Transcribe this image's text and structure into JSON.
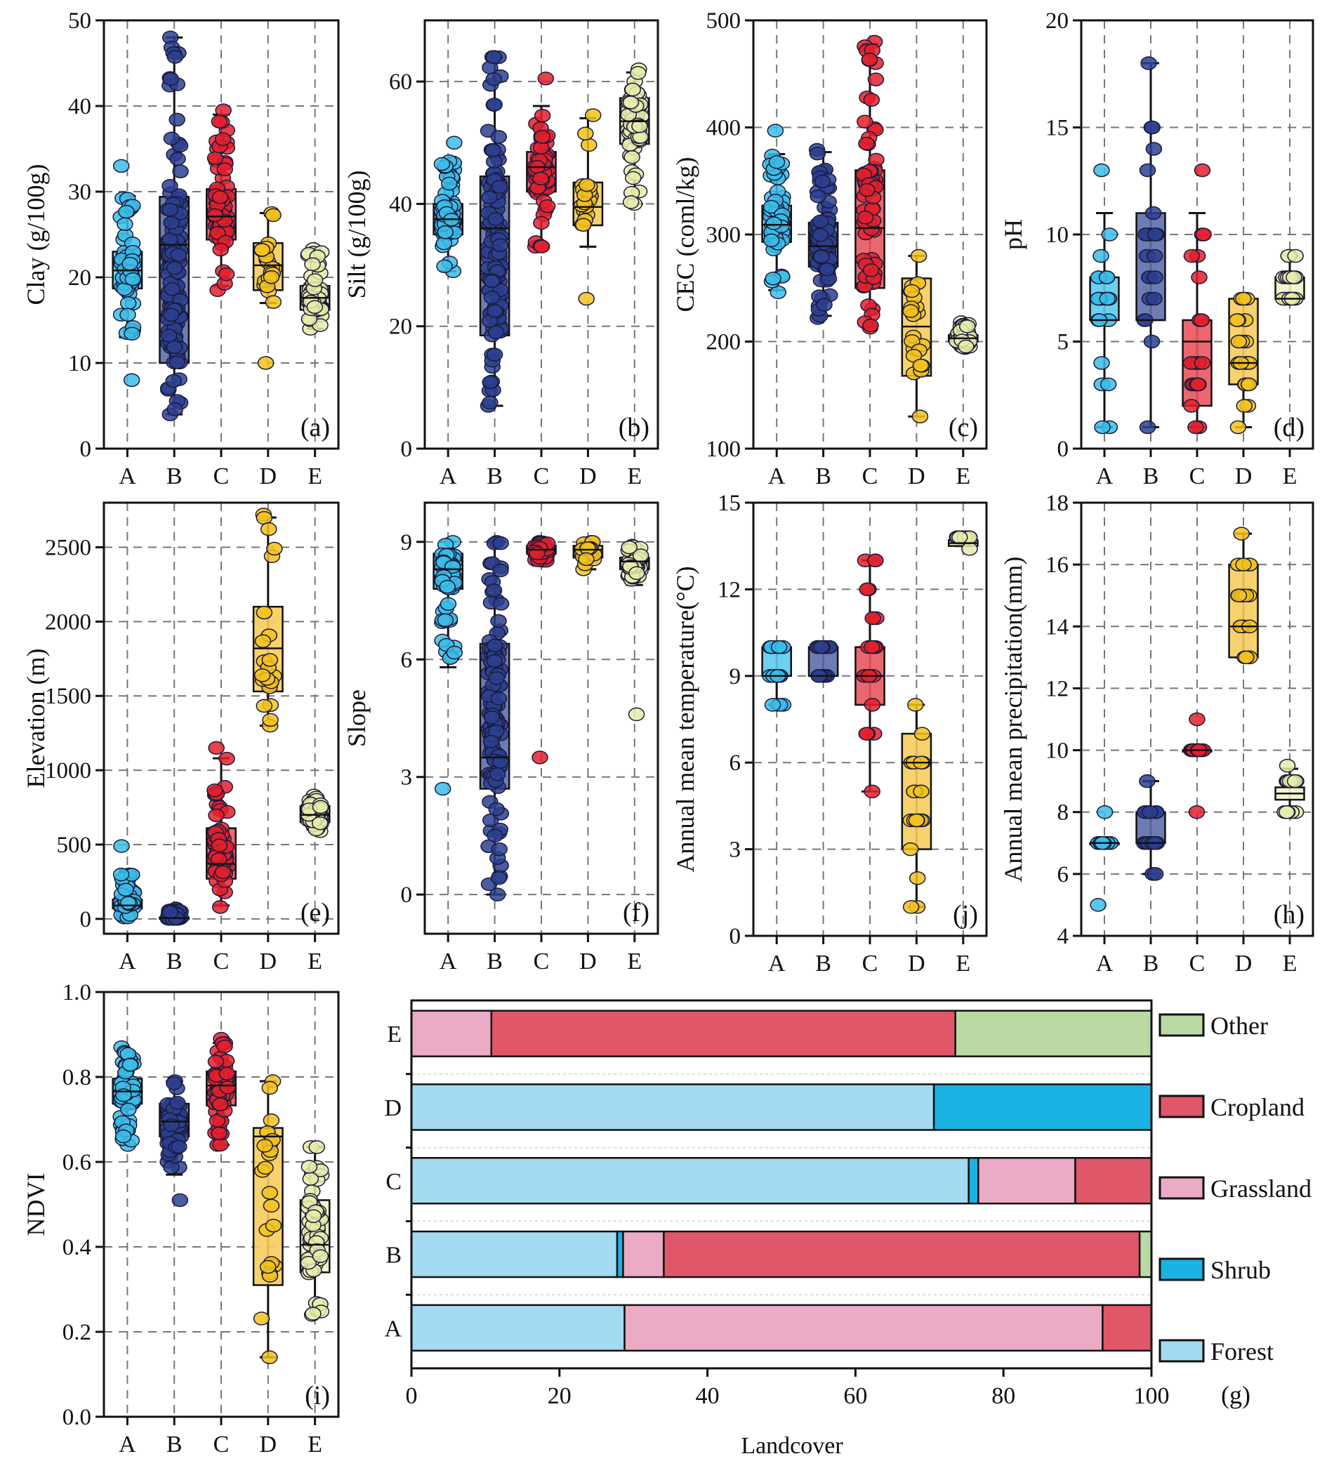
{
  "figure": {
    "categories": [
      "A",
      "B",
      "C",
      "D",
      "E"
    ],
    "group_colors": {
      "A": "#3bbde8",
      "B": "#2c3f8f",
      "C": "#e3202b",
      "D": "#f3c21c",
      "E": "#e8ecaa"
    },
    "box_fill_colors": {
      "A": "#5ccbef",
      "B": "#5d6eaa",
      "C": "#e9565f",
      "D": "#f6cd5c",
      "E": "#f1f3c6"
    }
  },
  "chart_data": [
    {
      "id": "a",
      "panel_label": "(a)",
      "type": "box",
      "ylabel": "Clay (g/100g)",
      "ylim": [
        0,
        50
      ],
      "yticks": [
        0,
        10,
        20,
        30,
        40,
        50
      ],
      "categories": [
        "A",
        "B",
        "C",
        "D",
        "E"
      ],
      "grid": true,
      "boxes": [
        {
          "cat": "A",
          "whisker_low": 13,
          "q1": 18.7,
          "median": 20.8,
          "q3": 23,
          "whisker_high": 29.5,
          "min_point": 8,
          "max_point": 33
        },
        {
          "cat": "B",
          "whisker_low": 4,
          "q1": 10,
          "median": 23.8,
          "q3": 29.4,
          "whisker_high": 48,
          "min_point": 4,
          "max_point": 48
        },
        {
          "cat": "C",
          "whisker_low": 19,
          "q1": 24.4,
          "median": 27.1,
          "q3": 30.3,
          "whisker_high": 39,
          "min_point": 18.5,
          "max_point": 39.5
        },
        {
          "cat": "D",
          "whisker_low": 17,
          "q1": 18.5,
          "median": 21.4,
          "q3": 24,
          "whisker_high": 27.5,
          "min_point": 10,
          "max_point": 27.5
        },
        {
          "cat": "E",
          "whisker_low": 14,
          "q1": 16.2,
          "median": 17.6,
          "q3": 19,
          "whisker_high": 23,
          "min_point": 14,
          "max_point": 23.3
        }
      ]
    },
    {
      "id": "b",
      "panel_label": "(b)",
      "type": "box",
      "ylabel": "Silt (g/100g)",
      "ylim": [
        0,
        70
      ],
      "yticks": [
        0,
        20,
        40,
        60
      ],
      "categories": [
        "A",
        "B",
        "C",
        "D",
        "E"
      ],
      "grid": true,
      "boxes": [
        {
          "cat": "A",
          "whisker_low": 29,
          "q1": 35,
          "median": 37.5,
          "q3": 40,
          "whisker_high": 47,
          "min_point": 29,
          "max_point": 50
        },
        {
          "cat": "B",
          "whisker_low": 7,
          "q1": 18.5,
          "median": 36,
          "q3": 44.5,
          "whisker_high": 64,
          "min_point": 7,
          "max_point": 64
        },
        {
          "cat": "C",
          "whisker_low": 33,
          "q1": 42,
          "median": 46,
          "q3": 48.5,
          "whisker_high": 56,
          "min_point": 33,
          "max_point": 60.5
        },
        {
          "cat": "D",
          "whisker_low": 33,
          "q1": 36.5,
          "median": 39.5,
          "q3": 43.5,
          "whisker_high": 54,
          "min_point": 24.5,
          "max_point": 54.5
        },
        {
          "cat": "E",
          "whisker_low": 40,
          "q1": 49.8,
          "median": 53.5,
          "q3": 57.3,
          "whisker_high": 61.5,
          "min_point": 40,
          "max_point": 62
        }
      ]
    },
    {
      "id": "c",
      "panel_label": "(c)",
      "type": "box",
      "ylabel": "CEC (coml/kg)",
      "ylim": [
        100,
        500
      ],
      "yticks": [
        100,
        200,
        300,
        400,
        500
      ],
      "categories": [
        "A",
        "B",
        "C",
        "D",
        "E"
      ],
      "grid": true,
      "boxes": [
        {
          "cat": "A",
          "whisker_low": 248,
          "q1": 293,
          "median": 309,
          "q3": 327,
          "whisker_high": 375,
          "min_point": 246,
          "max_point": 397
        },
        {
          "cat": "B",
          "whisker_low": 224,
          "q1": 270,
          "median": 289,
          "q3": 311,
          "whisker_high": 377,
          "min_point": 222,
          "max_point": 379
        },
        {
          "cat": "C",
          "whisker_low": 214,
          "q1": 250,
          "median": 306,
          "q3": 360,
          "whisker_high": 478,
          "min_point": 213,
          "max_point": 480
        },
        {
          "cat": "D",
          "whisker_low": 130,
          "q1": 168,
          "median": 214,
          "q3": 259,
          "whisker_high": 280,
          "min_point": 130,
          "max_point": 280
        },
        {
          "cat": "E",
          "whisker_low": 194,
          "q1": 200,
          "median": 203,
          "q3": 206,
          "whisker_high": 217,
          "min_point": 194,
          "max_point": 218
        }
      ]
    },
    {
      "id": "d",
      "panel_label": "(d)",
      "type": "box",
      "ylabel": "pH",
      "ylim": [
        0,
        20
      ],
      "yticks": [
        0,
        5,
        10,
        15,
        20
      ],
      "categories": [
        "A",
        "B",
        "C",
        "D",
        "E"
      ],
      "grid": true,
      "boxes": [
        {
          "cat": "A",
          "whisker_low": 1,
          "q1": 6,
          "median": 6,
          "q3": 8,
          "whisker_high": 11,
          "min_point": 1,
          "max_point": 13
        },
        {
          "cat": "B",
          "whisker_low": 1,
          "q1": 6,
          "median": 6,
          "q3": 11,
          "whisker_high": 18,
          "min_point": 1,
          "max_point": 18
        },
        {
          "cat": "C",
          "whisker_low": 1,
          "q1": 2,
          "median": 5,
          "q3": 6,
          "whisker_high": 11,
          "min_point": 1,
          "max_point": 13
        },
        {
          "cat": "D",
          "whisker_low": 1,
          "q1": 3,
          "median": 4,
          "q3": 7,
          "whisker_high": 7,
          "min_point": 1,
          "max_point": 7
        },
        {
          "cat": "E",
          "whisker_low": 7,
          "q1": 7,
          "median": 7,
          "q3": 8,
          "whisker_high": 9,
          "min_point": 7,
          "max_point": 9
        }
      ]
    },
    {
      "id": "e",
      "panel_label": "(e)",
      "type": "box",
      "ylabel": "Elevation (m)",
      "ylim": [
        -100,
        2800
      ],
      "yticks": [
        0,
        500,
        1000,
        1500,
        2000,
        2500
      ],
      "categories": [
        "A",
        "B",
        "C",
        "D",
        "E"
      ],
      "grid": true,
      "boxes": [
        {
          "cat": "A",
          "whisker_low": 10,
          "q1": 70,
          "median": 90,
          "q3": 130,
          "whisker_high": 330,
          "min_point": 10,
          "max_point": 490
        },
        {
          "cat": "B",
          "whisker_low": 0,
          "q1": 0,
          "median": 5,
          "q3": 10,
          "whisker_high": 60,
          "min_point": 0,
          "max_point": 70
        },
        {
          "cat": "C",
          "whisker_low": 90,
          "q1": 270,
          "median": 370,
          "q3": 610,
          "whisker_high": 1080,
          "min_point": 80,
          "max_point": 1150
        },
        {
          "cat": "D",
          "whisker_low": 1300,
          "q1": 1530,
          "median": 1820,
          "q3": 2100,
          "whisker_high": 2700,
          "min_point": 1300,
          "max_point": 2720
        },
        {
          "cat": "E",
          "whisker_low": 600,
          "q1": 650,
          "median": 700,
          "q3": 760,
          "whisker_high": 820,
          "min_point": 590,
          "max_point": 830
        }
      ]
    },
    {
      "id": "f",
      "panel_label": "(f)",
      "type": "box",
      "ylabel": "Slope",
      "ylim": [
        -1,
        10
      ],
      "yticks": [
        0,
        3,
        6,
        9
      ],
      "categories": [
        "A",
        "B",
        "C",
        "D",
        "E"
      ],
      "grid": true,
      "boxes": [
        {
          "cat": "A",
          "whisker_low": 5.8,
          "q1": 7.8,
          "median": 8.3,
          "q3": 8.7,
          "whisker_high": 9,
          "min_point": 2.7,
          "max_point": 9
        },
        {
          "cat": "B",
          "whisker_low": 0,
          "q1": 2.7,
          "median": 3.5,
          "q3": 6.4,
          "whisker_high": 9,
          "min_point": 0,
          "max_point": 9
        },
        {
          "cat": "C",
          "whisker_low": 8.5,
          "q1": 8.7,
          "median": 8.8,
          "q3": 8.9,
          "whisker_high": 9,
          "min_point": 3.5,
          "max_point": 9
        },
        {
          "cat": "D",
          "whisker_low": 8.3,
          "q1": 8.6,
          "median": 8.8,
          "q3": 8.9,
          "whisker_high": 9,
          "min_point": 8.3,
          "max_point": 9
        },
        {
          "cat": "E",
          "whisker_low": 7.9,
          "q1": 8.3,
          "median": 8.5,
          "q3": 8.6,
          "whisker_high": 8.9,
          "min_point": 4.6,
          "max_point": 8.9
        }
      ]
    },
    {
      "id": "j",
      "panel_label": "(j)",
      "type": "box",
      "ylabel": "Annual mean temperature(°C)",
      "ylim": [
        0,
        15
      ],
      "yticks": [
        0,
        3,
        6,
        9,
        12,
        15
      ],
      "categories": [
        "A",
        "B",
        "C",
        "D",
        "E"
      ],
      "grid": true,
      "boxes": [
        {
          "cat": "A",
          "whisker_low": 8,
          "q1": 9,
          "median": 9,
          "q3": 10,
          "whisker_high": 10,
          "min_point": 8,
          "max_point": 10
        },
        {
          "cat": "B",
          "whisker_low": 9,
          "q1": 9,
          "median": 9,
          "q3": 10,
          "whisker_high": 10,
          "min_point": 9,
          "max_point": 10
        },
        {
          "cat": "C",
          "whisker_low": 5,
          "q1": 8,
          "median": 9,
          "q3": 10,
          "whisker_high": 13,
          "min_point": 5,
          "max_point": 13
        },
        {
          "cat": "D",
          "whisker_low": 1,
          "q1": 3,
          "median": 6,
          "q3": 7,
          "whisker_high": 8,
          "min_point": 1,
          "max_point": 8
        },
        {
          "cat": "E",
          "whisker_low": 13.5,
          "q1": 13.5,
          "median": 13.6,
          "q3": 13.7,
          "whisker_high": 13.7,
          "min_point": 13.4,
          "max_point": 13.8
        }
      ]
    },
    {
      "id": "h",
      "panel_label": "(h)",
      "type": "box",
      "ylabel": "Annual mean precipitation(mm)",
      "ylim": [
        4,
        18
      ],
      "yticks": [
        4,
        6,
        8,
        10,
        12,
        14,
        16,
        18
      ],
      "categories": [
        "A",
        "B",
        "C",
        "D",
        "E"
      ],
      "grid": true,
      "boxes": [
        {
          "cat": "A",
          "whisker_low": 7,
          "q1": 7,
          "median": 7,
          "q3": 7,
          "whisker_high": 7,
          "min_point": 5,
          "max_point": 8
        },
        {
          "cat": "B",
          "whisker_low": 6,
          "q1": 7,
          "median": 7,
          "q3": 8,
          "whisker_high": 9,
          "min_point": 6,
          "max_point": 9
        },
        {
          "cat": "C",
          "whisker_low": 10,
          "q1": 10,
          "median": 10,
          "q3": 10,
          "whisker_high": 10,
          "min_point": 8,
          "max_point": 11
        },
        {
          "cat": "D",
          "whisker_low": 13,
          "q1": 13,
          "median": 14,
          "q3": 16,
          "whisker_high": 17,
          "min_point": 13,
          "max_point": 17
        },
        {
          "cat": "E",
          "whisker_low": 8.1,
          "q1": 8.4,
          "median": 8.6,
          "q3": 8.8,
          "whisker_high": 9.4,
          "min_point": 8,
          "max_point": 9.5
        }
      ]
    },
    {
      "id": "i",
      "panel_label": "(i)",
      "type": "box",
      "ylabel": "NDVI",
      "ylim": [
        0.0,
        1.0
      ],
      "yticks": [
        "0.0",
        "0.2",
        "0.4",
        "0.6",
        "0.8",
        "1.0"
      ],
      "categories": [
        "A",
        "B",
        "C",
        "D",
        "E"
      ],
      "grid": true,
      "boxes": [
        {
          "cat": "A",
          "whisker_low": 0.64,
          "q1": 0.737,
          "median": 0.766,
          "q3": 0.796,
          "whisker_high": 0.86,
          "min_point": 0.64,
          "max_point": 0.87
        },
        {
          "cat": "B",
          "whisker_low": 0.57,
          "q1": 0.66,
          "median": 0.695,
          "q3": 0.737,
          "whisker_high": 0.79,
          "min_point": 0.51,
          "max_point": 0.79
        },
        {
          "cat": "C",
          "whisker_low": 0.64,
          "q1": 0.733,
          "median": 0.78,
          "q3": 0.813,
          "whisker_high": 0.88,
          "min_point": 0.64,
          "max_point": 0.89
        },
        {
          "cat": "D",
          "whisker_low": 0.14,
          "q1": 0.31,
          "median": 0.66,
          "q3": 0.68,
          "whisker_high": 0.79,
          "min_point": 0.14,
          "max_point": 0.79
        },
        {
          "cat": "E",
          "whisker_low": 0.24,
          "q1": 0.34,
          "median": 0.405,
          "q3": 0.51,
          "whisker_high": 0.635,
          "min_point": 0.24,
          "max_point": 0.635
        }
      ]
    },
    {
      "id": "g",
      "panel_label": "(g)",
      "type": "bar",
      "orientation": "horizontal-stacked",
      "xlabel": "Landcover",
      "xlim": [
        0,
        100
      ],
      "xticks": [
        0,
        20,
        40,
        60,
        80,
        100
      ],
      "categories": [
        "A",
        "B",
        "C",
        "D",
        "E"
      ],
      "legend_position": "right",
      "series": [
        {
          "name": "Forest",
          "color": "#a3daf2",
          "values": [
            28.8,
            27.8,
            75.3,
            70.6,
            0
          ]
        },
        {
          "name": "Shrub",
          "color": "#1ab2e3",
          "values": [
            0,
            0.8,
            1.3,
            29.4,
            0
          ]
        },
        {
          "name": "Grassland",
          "color": "#ebaac5",
          "values": [
            64.6,
            5.5,
            13.1,
            0,
            10.8
          ]
        },
        {
          "name": "Cropland",
          "color": "#e05769",
          "values": [
            6.6,
            64.3,
            10.3,
            0,
            62.7
          ]
        },
        {
          "name": "Other",
          "color": "#bad9a3",
          "values": [
            0,
            1.6,
            0,
            0,
            26.5
          ]
        }
      ],
      "legend_order": [
        "Other",
        "Cropland",
        "Grassland",
        "Shrub",
        "Forest"
      ]
    }
  ]
}
